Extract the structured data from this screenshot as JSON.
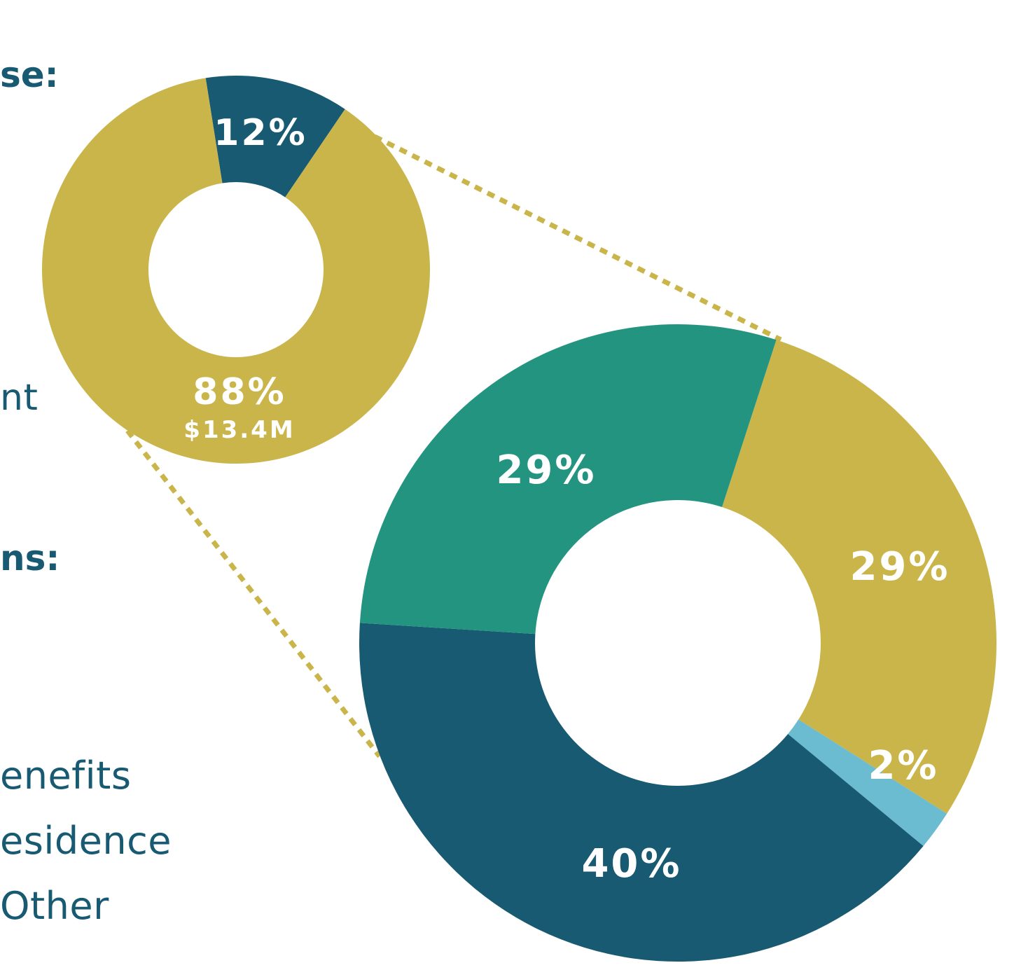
{
  "colors": {
    "navy": "#175a72",
    "gold": "#cab54b",
    "teal": "#239480",
    "light_blue": "#6bbbd1",
    "label": "#ffffff",
    "connector": "#cab54b"
  },
  "left_text": {
    "heading_top": "se:",
    "frag_middle": "nt",
    "heading_bottom": "ns:",
    "legend": [
      "enefits",
      "esidence",
      "Other"
    ]
  },
  "chart_data": [
    {
      "type": "pie",
      "variant": "donut",
      "title": "",
      "slices": [
        {
          "label": "12%",
          "value": 12,
          "color": "#175a72"
        },
        {
          "label": "88%",
          "value": 88,
          "color": "#cab54b",
          "sublabel": "$13.4M"
        }
      ]
    },
    {
      "type": "pie",
      "variant": "donut",
      "title": "",
      "note": "breakdown of the 88% slice",
      "slices": [
        {
          "label": "29%",
          "value": 29,
          "color": "#cab54b"
        },
        {
          "label": "2%",
          "value": 2,
          "color": "#6bbbd1"
        },
        {
          "label": "40%",
          "value": 40,
          "color": "#175a72"
        },
        {
          "label": "29%",
          "value": 29,
          "color": "#239480"
        }
      ]
    }
  ]
}
